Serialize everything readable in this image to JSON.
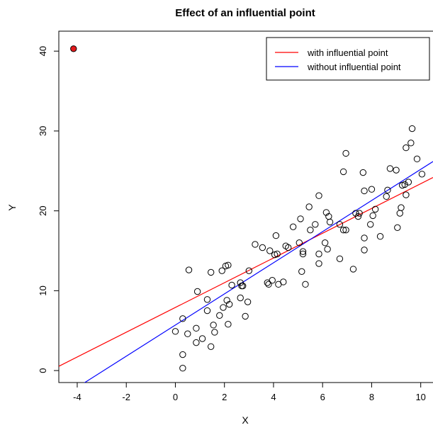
{
  "chart_data": {
    "type": "scatter",
    "title": "Effect of an influential point",
    "xlabel": "X",
    "ylabel": "Y",
    "xlim": [
      -4.75,
      10.5
    ],
    "ylim": [
      -1.5,
      42.5
    ],
    "x_ticks": [
      -4,
      -2,
      0,
      2,
      4,
      6,
      8,
      10
    ],
    "y_ticks": [
      0,
      10,
      20,
      30,
      40
    ],
    "x_tick_labels": [
      "-4",
      "-2",
      "0",
      "2",
      "4",
      "6",
      "8",
      "10"
    ],
    "y_tick_labels": [
      "0",
      "10",
      "20",
      "30",
      "40"
    ],
    "grid": false,
    "legend_position": "top-right",
    "points": [
      {
        "x": 0.0,
        "y": 4.9
      },
      {
        "x": 0.3,
        "y": 0.3
      },
      {
        "x": 0.3,
        "y": 2.0
      },
      {
        "x": 0.3,
        "y": 6.5
      },
      {
        "x": 0.5,
        "y": 4.6
      },
      {
        "x": 0.55,
        "y": 12.6
      },
      {
        "x": 0.85,
        "y": 3.5
      },
      {
        "x": 0.85,
        "y": 5.3
      },
      {
        "x": 0.9,
        "y": 9.9
      },
      {
        "x": 1.1,
        "y": 4.0
      },
      {
        "x": 1.3,
        "y": 7.5
      },
      {
        "x": 1.3,
        "y": 8.9
      },
      {
        "x": 1.45,
        "y": 3.0
      },
      {
        "x": 1.45,
        "y": 12.3
      },
      {
        "x": 1.55,
        "y": 5.7
      },
      {
        "x": 1.6,
        "y": 4.8
      },
      {
        "x": 1.8,
        "y": 6.9
      },
      {
        "x": 1.9,
        "y": 12.5
      },
      {
        "x": 1.95,
        "y": 7.9
      },
      {
        "x": 2.05,
        "y": 13.1
      },
      {
        "x": 2.1,
        "y": 8.8
      },
      {
        "x": 2.15,
        "y": 13.2
      },
      {
        "x": 2.15,
        "y": 5.8
      },
      {
        "x": 2.2,
        "y": 8.3
      },
      {
        "x": 2.3,
        "y": 10.7
      },
      {
        "x": 2.65,
        "y": 9.1
      },
      {
        "x": 2.65,
        "y": 11.0
      },
      {
        "x": 2.7,
        "y": 10.6
      },
      {
        "x": 2.75,
        "y": 10.6
      },
      {
        "x": 2.85,
        "y": 6.8
      },
      {
        "x": 2.95,
        "y": 8.6
      },
      {
        "x": 3.0,
        "y": 12.5
      },
      {
        "x": 3.25,
        "y": 15.8
      },
      {
        "x": 3.55,
        "y": 15.4
      },
      {
        "x": 3.75,
        "y": 11.0
      },
      {
        "x": 3.8,
        "y": 10.8
      },
      {
        "x": 3.85,
        "y": 15.0
      },
      {
        "x": 3.95,
        "y": 11.3
      },
      {
        "x": 4.05,
        "y": 14.5
      },
      {
        "x": 4.1,
        "y": 16.9
      },
      {
        "x": 4.15,
        "y": 14.6
      },
      {
        "x": 4.2,
        "y": 10.8
      },
      {
        "x": 4.4,
        "y": 11.1
      },
      {
        "x": 4.5,
        "y": 15.6
      },
      {
        "x": 4.6,
        "y": 15.4
      },
      {
        "x": 4.8,
        "y": 18.0
      },
      {
        "x": 5.05,
        "y": 16.0
      },
      {
        "x": 5.1,
        "y": 19.0
      },
      {
        "x": 5.15,
        "y": 12.4
      },
      {
        "x": 5.2,
        "y": 14.9
      },
      {
        "x": 5.2,
        "y": 14.6
      },
      {
        "x": 5.3,
        "y": 10.8
      },
      {
        "x": 5.45,
        "y": 20.5
      },
      {
        "x": 5.5,
        "y": 17.6
      },
      {
        "x": 5.7,
        "y": 18.3
      },
      {
        "x": 5.85,
        "y": 13.4
      },
      {
        "x": 5.85,
        "y": 14.6
      },
      {
        "x": 5.85,
        "y": 21.9
      },
      {
        "x": 6.1,
        "y": 16.0
      },
      {
        "x": 6.15,
        "y": 19.8
      },
      {
        "x": 6.2,
        "y": 15.2
      },
      {
        "x": 6.25,
        "y": 19.3
      },
      {
        "x": 6.3,
        "y": 18.6
      },
      {
        "x": 6.7,
        "y": 14.0
      },
      {
        "x": 6.7,
        "y": 18.3
      },
      {
        "x": 6.85,
        "y": 17.6
      },
      {
        "x": 6.85,
        "y": 24.9
      },
      {
        "x": 6.95,
        "y": 17.6
      },
      {
        "x": 6.95,
        "y": 27.2
      },
      {
        "x": 7.25,
        "y": 12.7
      },
      {
        "x": 7.35,
        "y": 19.7
      },
      {
        "x": 7.45,
        "y": 19.3
      },
      {
        "x": 7.5,
        "y": 19.7
      },
      {
        "x": 7.65,
        "y": 24.8
      },
      {
        "x": 7.7,
        "y": 22.5
      },
      {
        "x": 7.7,
        "y": 16.6
      },
      {
        "x": 7.7,
        "y": 15.1
      },
      {
        "x": 7.95,
        "y": 18.3
      },
      {
        "x": 8.0,
        "y": 22.7
      },
      {
        "x": 8.05,
        "y": 19.4
      },
      {
        "x": 8.15,
        "y": 20.2
      },
      {
        "x": 8.35,
        "y": 16.8
      },
      {
        "x": 8.6,
        "y": 21.8
      },
      {
        "x": 8.65,
        "y": 22.6
      },
      {
        "x": 8.75,
        "y": 25.3
      },
      {
        "x": 9.0,
        "y": 25.1
      },
      {
        "x": 9.05,
        "y": 17.9
      },
      {
        "x": 9.15,
        "y": 19.7
      },
      {
        "x": 9.2,
        "y": 20.4
      },
      {
        "x": 9.25,
        "y": 23.2
      },
      {
        "x": 9.35,
        "y": 23.3
      },
      {
        "x": 9.4,
        "y": 27.9
      },
      {
        "x": 9.4,
        "y": 22.0
      },
      {
        "x": 9.5,
        "y": 23.6
      },
      {
        "x": 9.6,
        "y": 28.5
      },
      {
        "x": 9.65,
        "y": 30.3
      },
      {
        "x": 9.85,
        "y": 26.5
      },
      {
        "x": 10.05,
        "y": 24.6
      }
    ],
    "influential_point": {
      "x": -4.15,
      "y": 40.3,
      "color": "#e31a1c"
    },
    "series": [
      {
        "name": "with influential point",
        "color": "#ff0000",
        "intercept": 7.9,
        "slope": 1.55
      },
      {
        "name": "without influential point",
        "color": "#0000ff",
        "intercept": 5.7,
        "slope": 1.95
      }
    ]
  }
}
